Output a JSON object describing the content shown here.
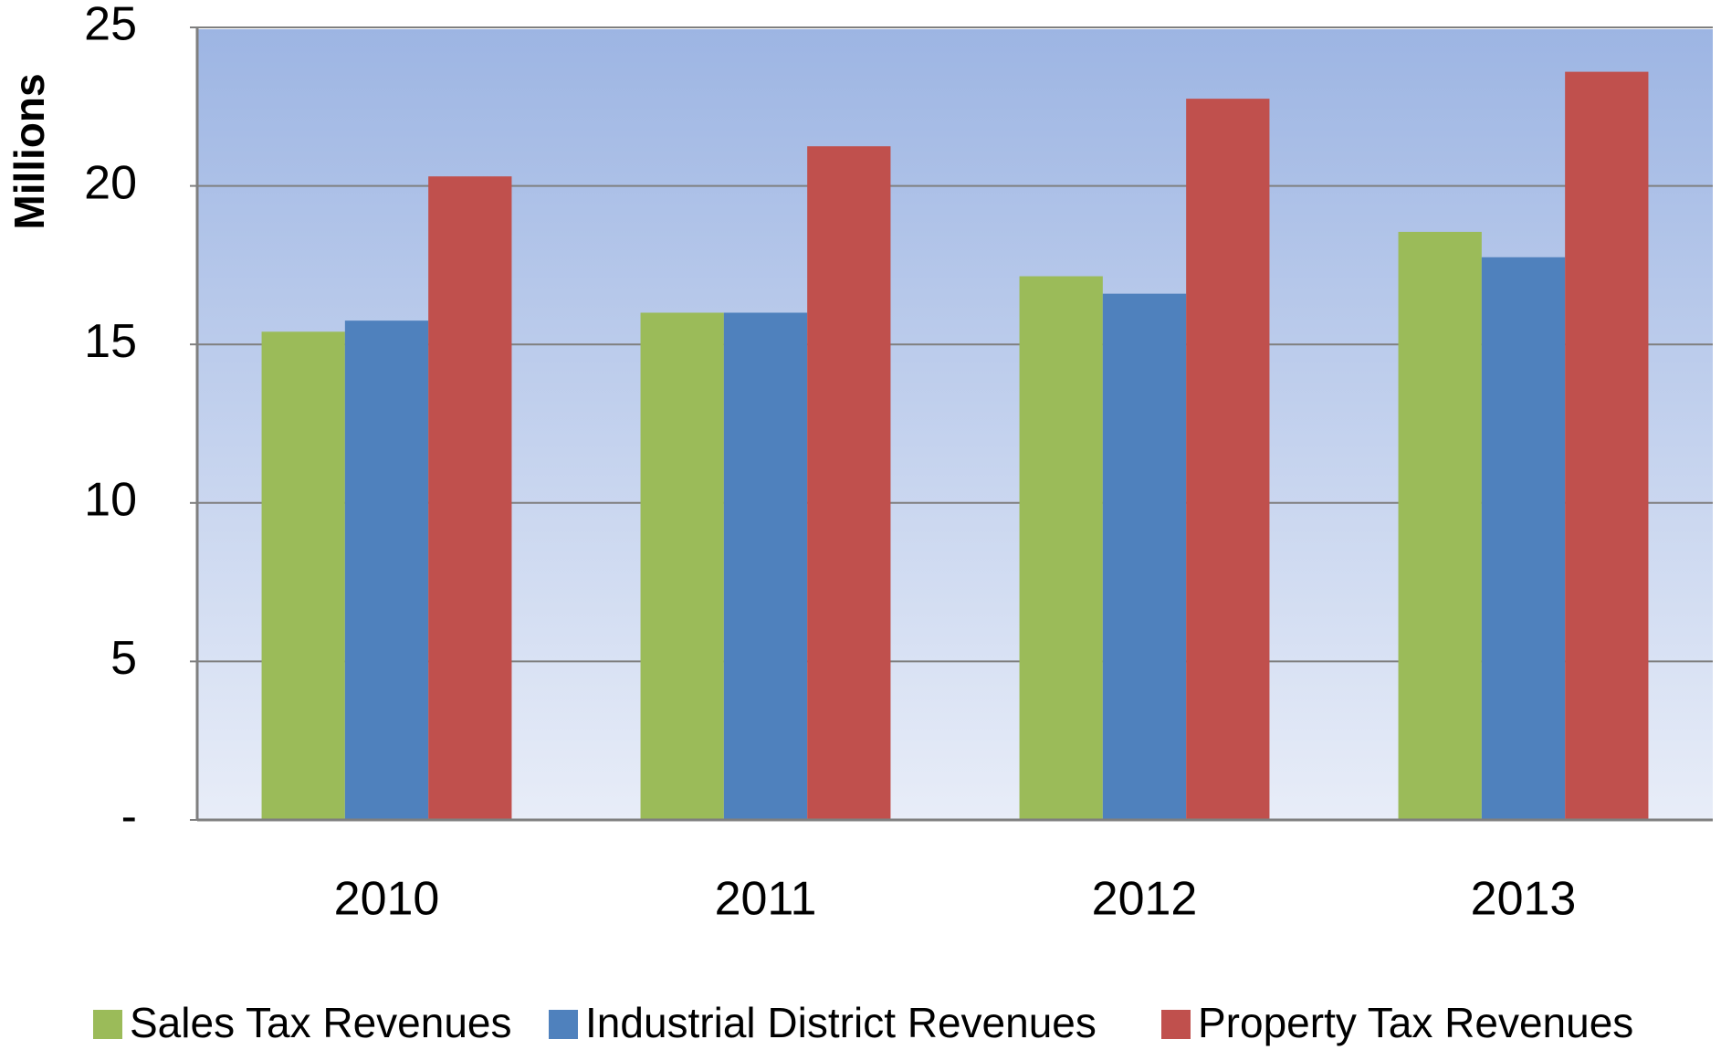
{
  "chart_data": {
    "type": "bar",
    "y_label": "Millions",
    "categories": [
      "2010",
      "2011",
      "2012",
      "2013"
    ],
    "series": [
      {
        "name": "Sales Tax Revenues",
        "color": "#9bbb59",
        "values": [
          15.4,
          16.0,
          17.15,
          18.55
        ]
      },
      {
        "name": "Industrial District  Revenues",
        "color": "#4f81bd",
        "values": [
          15.75,
          16.0,
          16.6,
          17.75
        ]
      },
      {
        "name": "Property Tax Revenues",
        "color": "#c0504d",
        "values": [
          20.3,
          21.25,
          22.75,
          23.6
        ]
      }
    ],
    "ylim": [
      0,
      25
    ],
    "yticks": [
      {
        "value": 0,
        "label": "-"
      },
      5,
      10,
      15,
      20,
      25
    ],
    "grid": true,
    "legend": "bottom"
  }
}
